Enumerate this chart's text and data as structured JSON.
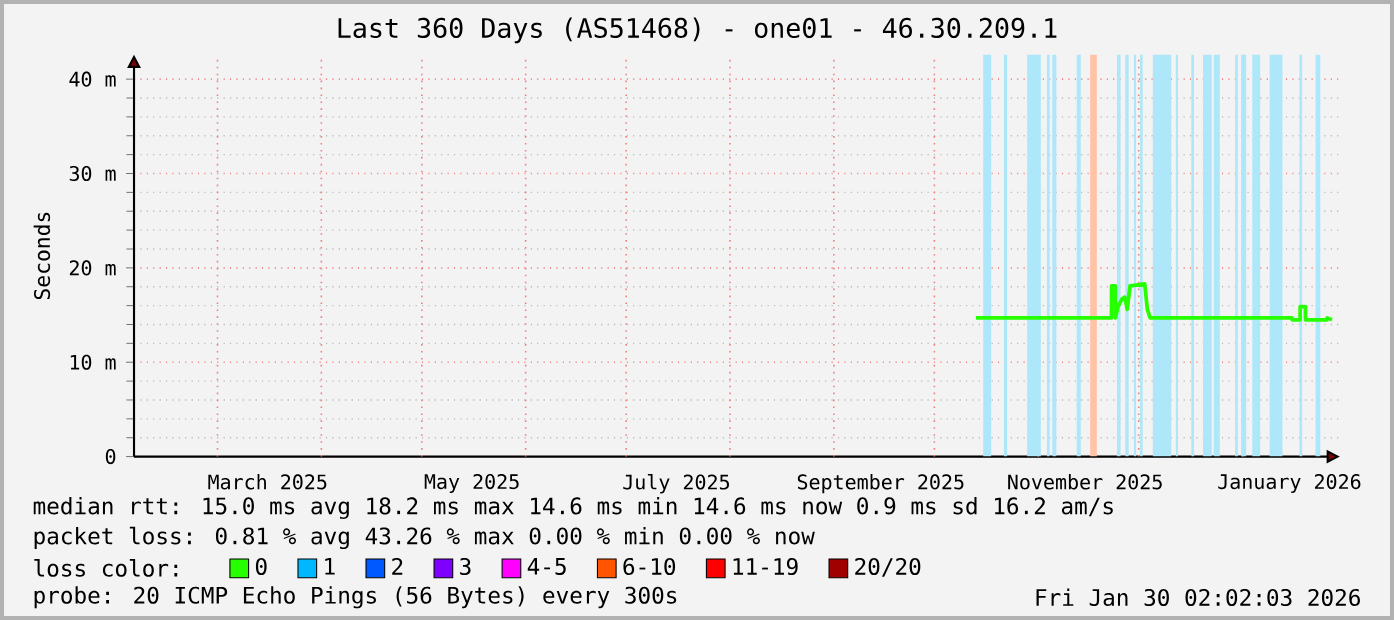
{
  "chart_data": {
    "type": "line",
    "title": "Last 360 Days (AS51468) - one01 - 46.30.209.1",
    "ylabel": "Seconds",
    "xlim": [
      "2025-02-04T02:00",
      "2026-01-30T02:00"
    ],
    "ylim": [
      0,
      42.6
    ],
    "yticks": [
      {
        "value": 0,
        "label": "0"
      },
      {
        "value": 10,
        "label": "10 m"
      },
      {
        "value": 20,
        "label": "20 m"
      },
      {
        "value": 30,
        "label": "30 m"
      },
      {
        "value": 40,
        "label": "40 m"
      }
    ],
    "xticks": [
      {
        "value": "2025-03-01",
        "label": null
      },
      {
        "value": "2025-03-16",
        "label": "March 2025"
      },
      {
        "value": "2025-04-01",
        "label": null
      },
      {
        "value": "2025-05-01",
        "label": null
      },
      {
        "value": "2025-05-16",
        "label": "May 2025"
      },
      {
        "value": "2025-06-01",
        "label": null
      },
      {
        "value": "2025-07-01",
        "label": null
      },
      {
        "value": "2025-07-16",
        "label": "July 2025"
      },
      {
        "value": "2025-08-01",
        "label": null
      },
      {
        "value": "2025-09-01",
        "label": null
      },
      {
        "value": "2025-09-15",
        "label": "September 2025"
      },
      {
        "value": "2025-10-01",
        "label": null
      },
      {
        "value": "2025-11-01",
        "label": null
      },
      {
        "value": "2025-11-15",
        "label": "November 2025"
      },
      {
        "value": "2025-12-01",
        "label": null
      },
      {
        "value": "2026-01-01",
        "label": null
      },
      {
        "value": "2026-01-15",
        "label": "January 2026"
      }
    ],
    "grid": true,
    "legend": "bottom",
    "marker": "none",
    "line_style": "solid",
    "series": [
      {
        "name": "0",
        "color": "#26ff00",
        "x": [
          "2025-10-13T10:00",
          "2025-11-22T21:00",
          "2025-11-22T22:00",
          "2025-11-24T00:00",
          "2025-11-24T01:00",
          "2025-11-24T20:00",
          "2025-11-26T00:00",
          "2025-11-26T20:00",
          "2025-11-27T14:00",
          "2025-11-28T10:00",
          "2025-12-02T19:00",
          "2025-12-03T14:00",
          "2025-12-04T10:00",
          "2026-01-15T19:00",
          "2026-01-15T20:00",
          "2026-01-18T04:00",
          "2026-01-18T05:00",
          "2026-01-19T18:00",
          "2026-01-19T19:00",
          "2026-01-26T05:00",
          "2026-01-26T06:00",
          "2026-01-27T17:00"
        ],
        "values": [
          14.7,
          14.7,
          18.1,
          18.1,
          14.7,
          15.9,
          16.7,
          16.9,
          15.6,
          18.1,
          18.3,
          15.6,
          14.7,
          14.7,
          14.5,
          14.5,
          15.9,
          15.9,
          14.5,
          14.5,
          14.7,
          14.5
        ]
      },
      {
        "name": "1",
        "color": "#00b8ff"
      },
      {
        "name": "2",
        "color": "#0059ff"
      },
      {
        "name": "3",
        "color": "#7e00ff"
      },
      {
        "name": "4-5",
        "color": "#ff00ff"
      },
      {
        "name": "6-10",
        "color": "#ff5500"
      },
      {
        "name": "11-19",
        "color": "#ff0000"
      },
      {
        "name": "20/20",
        "color": "#a10000"
      }
    ],
    "bands": [
      {
        "axis": "x",
        "from": "2025-10-15T14:00",
        "to": "2025-10-17T23:00",
        "color": "#aee6fa"
      },
      {
        "axis": "x",
        "from": "2025-10-21T17:00",
        "to": "2025-10-22T17:00",
        "color": "#aee6fa"
      },
      {
        "axis": "x",
        "from": "2025-10-28T17:00",
        "to": "2025-11-01T19:00",
        "color": "#aee6fa"
      },
      {
        "axis": "x",
        "from": "2025-11-03T14:00",
        "to": "2025-11-04T10:00",
        "color": "#aee6fa"
      },
      {
        "axis": "x",
        "from": "2025-11-05T05:00",
        "to": "2025-11-06T10:00",
        "color": "#aee6fa"
      },
      {
        "axis": "x",
        "from": "2025-11-12T12:00",
        "to": "2025-11-13T17:00",
        "color": "#aee6fa"
      },
      {
        "axis": "x",
        "from": "2025-11-16T12:00",
        "to": "2025-11-18T12:00",
        "color": "#ffc4a8"
      },
      {
        "axis": "x",
        "from": "2025-11-24T12:00",
        "to": "2025-11-25T14:00",
        "color": "#aee6fa"
      },
      {
        "axis": "x",
        "from": "2025-11-27T00:00",
        "to": "2025-11-28T00:00",
        "color": "#aee6fa"
      },
      {
        "axis": "x",
        "from": "2025-11-29T14:00",
        "to": "2025-11-30T05:00",
        "color": "#aee6fa"
      },
      {
        "axis": "x",
        "from": "2025-12-01T10:00",
        "to": "2025-12-02T05:00",
        "color": "#aee6fa"
      },
      {
        "axis": "x",
        "from": "2025-12-05T05:00",
        "to": "2025-12-10T17:00",
        "color": "#aee6fa"
      },
      {
        "axis": "x",
        "from": "2025-12-12T02:00",
        "to": "2025-12-12T17:00",
        "color": "#aee6fa"
      },
      {
        "axis": "x",
        "from": "2025-12-16T17:00",
        "to": "2025-12-17T12:00",
        "color": "#aee6fa"
      },
      {
        "axis": "x",
        "from": "2025-12-20T05:00",
        "to": "2025-12-22T19:00",
        "color": "#aee6fa"
      },
      {
        "axis": "x",
        "from": "2025-12-23T10:00",
        "to": "2025-12-25T05:00",
        "color": "#aee6fa"
      },
      {
        "axis": "x",
        "from": "2025-12-29T19:00",
        "to": "2025-12-30T14:00",
        "color": "#aee6fa"
      },
      {
        "axis": "x",
        "from": "2025-12-31T14:00",
        "to": "2026-01-02T02:00",
        "color": "#aee6fa"
      },
      {
        "axis": "x",
        "from": "2026-01-03T22:00",
        "to": "2026-01-06T07:00",
        "color": "#aee6fa"
      },
      {
        "axis": "x",
        "from": "2026-01-09T02:00",
        "to": "2026-01-12T22:00",
        "color": "#aee6fa"
      },
      {
        "axis": "x",
        "from": "2026-01-18T00:00",
        "to": "2026-01-18T19:00",
        "color": "#aee6fa"
      },
      {
        "axis": "x",
        "from": "2026-01-22T19:00",
        "to": "2026-01-24T05:00",
        "color": "#aee6fa"
      }
    ],
    "annotations": [
      "median rtt:  15.0 ms avg  18.2 ms max  14.6 ms min  14.6 ms now  0.9 ms sd  16.2  am/s",
      "packet loss: 0.81 % avg  43.26 % max  0.00 % min  0.00 % now",
      "loss color:",
      "probe:       20 ICMP Echo Pings (56 Bytes) every 300s",
      "Fri Jan 30 02:02:03 2026"
    ]
  }
}
